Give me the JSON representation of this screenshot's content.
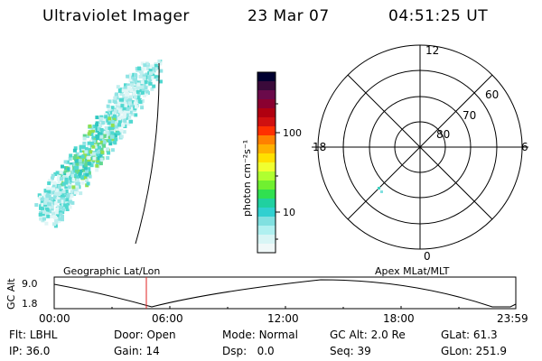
{
  "header": {
    "instrument": "Ultraviolet Imager",
    "date": "23 Mar 07",
    "time": "04:51:25 UT"
  },
  "colorbar": {
    "unit_label": "photon cm⁻²s⁻¹",
    "ticks": [
      "100",
      "10"
    ],
    "colors": [
      "#000030",
      "#3a0a3a",
      "#6a0a4a",
      "#8a0030",
      "#b00010",
      "#d01010",
      "#ff3000",
      "#ff8000",
      "#ffb000",
      "#ffe000",
      "#f0ff30",
      "#b0ff30",
      "#70f030",
      "#30e050",
      "#20d0a0",
      "#30d0d0",
      "#80e0e0",
      "#b0f0f0",
      "#d8f5f5",
      "#f0f8f8"
    ]
  },
  "polar_plot": {
    "mlt_labels": {
      "top": "12",
      "right": "6",
      "bottom": "0",
      "left": "18"
    },
    "lat_labels": [
      "60",
      "70",
      "80"
    ]
  },
  "altitude_panel": {
    "left_header": "Geographic Lat/Lon",
    "right_header": "Apex MLat/MLT",
    "y_label": "GC Alt",
    "y_ticks": [
      "9.0",
      "1.8"
    ],
    "x_ticks": [
      "00:00",
      "06:00",
      "12:00",
      "18:00",
      "23:59"
    ]
  },
  "status": {
    "row1": [
      {
        "key": "Flt:",
        "value": "LBHL"
      },
      {
        "key": "Door:",
        "value": "Open"
      },
      {
        "key": "Mode:",
        "value": "Normal"
      },
      {
        "key": "GC Alt:",
        "value": "2.0 Re"
      },
      {
        "key": "GLat:",
        "value": "61.3"
      }
    ],
    "row2": [
      {
        "key": "IP:",
        "value": "36.0"
      },
      {
        "key": "Gain:",
        "value": "14"
      },
      {
        "key": "Dsp:",
        "value": "0.0"
      },
      {
        "key": "Seq:",
        "value": "39"
      },
      {
        "key": "GLon:",
        "value": "251.9"
      }
    ]
  }
}
